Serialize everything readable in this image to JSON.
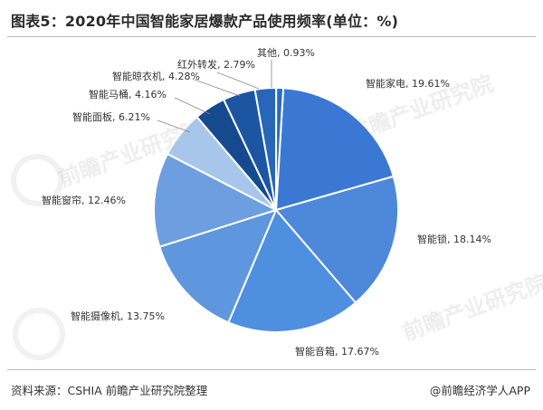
{
  "title": "图表5：2020年中国智能家居爆款产品使用频率(单位：%)",
  "source": "资料来源：CSHIA 前瞻产业研究院整理",
  "credit": "@前瞻经济学人APP",
  "watermark": "前瞻产业研究院",
  "chart_data": {
    "type": "pie",
    "title": "图表5：2020年中国智能家居爆款产品使用频率(单位：%)",
    "categories": [
      "智能家电",
      "智能锁",
      "智能音箱",
      "智能摄像机",
      "智能窗帘",
      "智能面板",
      "智能马桶",
      "智能晾衣机",
      "红外转发",
      "其他"
    ],
    "values": [
      19.61,
      18.14,
      17.67,
      13.75,
      12.46,
      6.21,
      4.16,
      4.28,
      2.79,
      0.93
    ],
    "labels": [
      "智能家电, 19.61%",
      "智能锁, 18.14%",
      "智能音箱, 17.67%",
      "智能摄像机, 13.75%",
      "智能窗帘, 12.46%",
      "智能面板, 6.21%",
      "智能马桶, 4.16%",
      "智能晾衣机, 4.28%",
      "红外转发, 2.79%",
      "其他, 0.93%"
    ],
    "colors": [
      "#3b78d4",
      "#4d88da",
      "#4f8fe0",
      "#5e97dd",
      "#6d9fe0",
      "#a7c6ea",
      "#164a8f",
      "#1c56a3",
      "#2766b8",
      "#2a6bc2"
    ]
  }
}
